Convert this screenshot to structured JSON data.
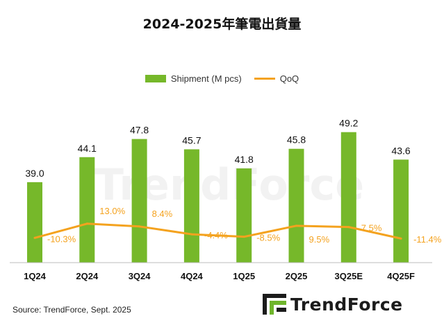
{
  "chart_data": {
    "type": "bar",
    "title": "2024-2025年筆電出貨量",
    "categories": [
      "1Q24",
      "2Q24",
      "3Q24",
      "4Q24",
      "1Q25",
      "2Q25",
      "3Q25E",
      "4Q25F"
    ],
    "series": [
      {
        "name": "Shipment (M pcs)",
        "type": "bar",
        "color": "#76b82a",
        "values": [
          39.0,
          44.1,
          47.8,
          45.7,
          41.8,
          45.8,
          49.2,
          43.6
        ],
        "labels": [
          "39.0",
          "44.1",
          "47.8",
          "45.7",
          "41.8",
          "45.8",
          "49.2",
          "43.6"
        ]
      },
      {
        "name": "QoQ",
        "type": "line",
        "color": "#f4a21e",
        "values": [
          -10.3,
          13.0,
          8.4,
          -4.4,
          -8.5,
          9.5,
          7.5,
          -11.4
        ],
        "labels": [
          "-10.3%",
          "13.0%",
          "8.4%",
          "-4.4%",
          "-8.5%",
          "9.5%",
          "7.5%",
          "-11.4%"
        ]
      }
    ],
    "legend_position": "top-center",
    "grid": false,
    "source": "Source: TrendForce, Sept. 2025"
  },
  "watermark": "TrendForce",
  "logo_text": "TrendForce"
}
